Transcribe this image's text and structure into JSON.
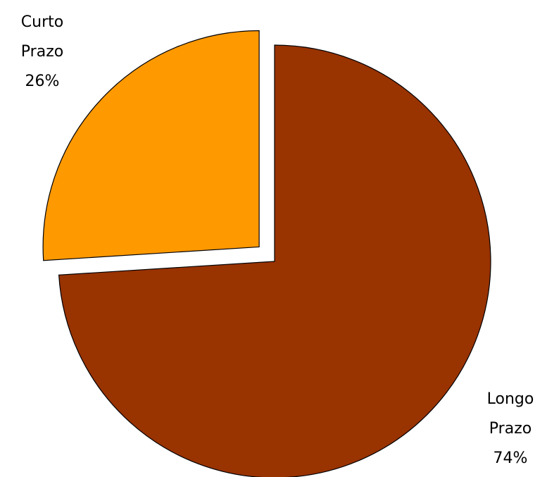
{
  "chart_data": {
    "type": "pie",
    "slices": [
      {
        "name": "Curto Prazo",
        "label_lines": [
          "Curto",
          "Prazo",
          "26%"
        ],
        "value": 26,
        "color": "#ff9900",
        "exploded": true
      },
      {
        "name": "Longo Prazo",
        "label_lines": [
          "Longo",
          "Prazo",
          "74%"
        ],
        "value": 74,
        "color": "#993300",
        "exploded": false
      }
    ],
    "start": "12 o'clock",
    "direction": "clockwise",
    "legend": "none"
  }
}
